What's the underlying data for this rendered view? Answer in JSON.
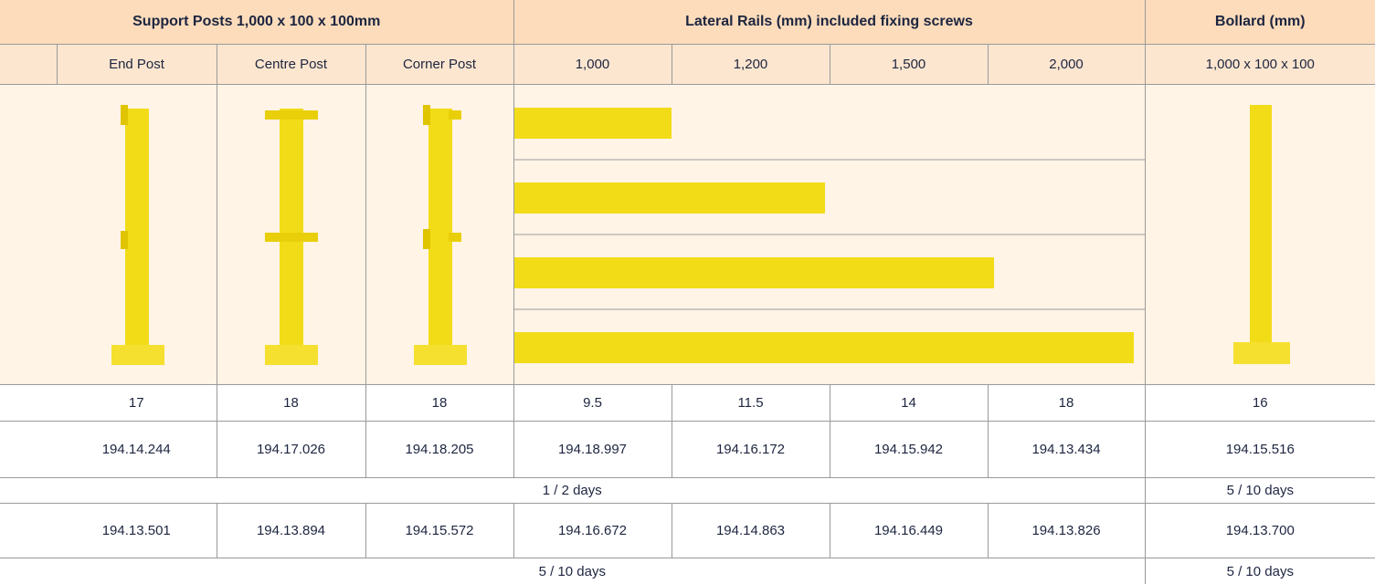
{
  "header": {
    "groups": [
      "Support Posts 1,000 x 100 x 100mm",
      "Lateral Rails (mm) included fixing screws",
      "Bollard (mm)"
    ],
    "columns": [
      "End Post",
      "Centre Post",
      "Corner Post",
      "1,000",
      "1,200",
      "1,500",
      "2,000",
      "1,000 x 100 x 100"
    ]
  },
  "rows": {
    "weights": [
      17,
      18,
      18,
      9.5,
      11.5,
      14,
      18,
      16
    ],
    "codes_a": [
      "194.14.244",
      "194.17.026",
      "194.18.205",
      "194.18.997",
      "194.16.172",
      "194.15.942",
      "194.13.434",
      "194.15.516"
    ],
    "delivery_a": [
      "1 / 2 days",
      "5 / 10 days"
    ],
    "codes_b": [
      "194.13.501",
      "194.13.894",
      "194.15.572",
      "194.16.672",
      "194.14.863",
      "194.16.449",
      "194.13.826",
      "194.13.700"
    ],
    "delivery_b": [
      "5 / 10 days",
      "5 / 10 days"
    ]
  }
}
